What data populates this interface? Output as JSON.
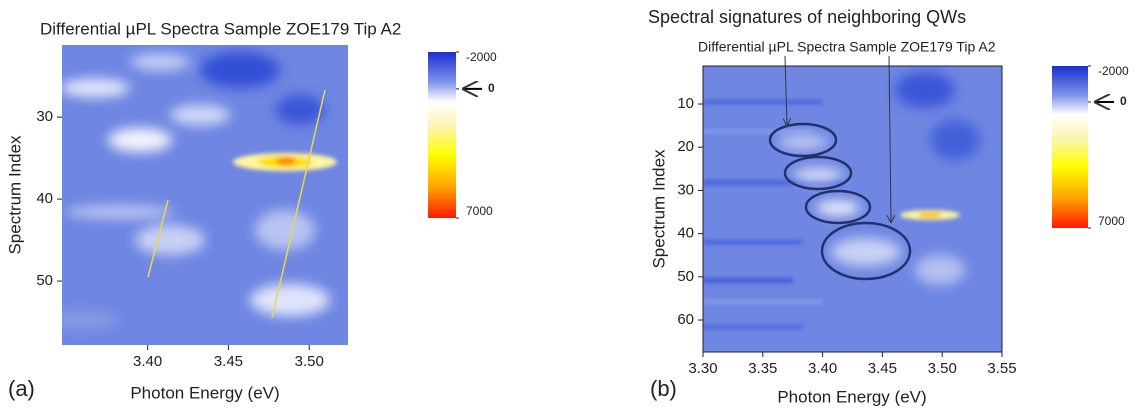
{
  "chart_data": [
    {
      "type": "heatmap",
      "panel_label": "(a)",
      "title": "Differential µPL Spectra Sample ZOE179 Tip A2",
      "x_label": "Photon Energy (eV)",
      "y_label": "Spectrum Index",
      "xlim": [
        3.347,
        3.524
      ],
      "xticks": [
        {
          "value": 3.4,
          "label": "3.40"
        },
        3.45,
        {
          "value": 3.5,
          "label": "3.50"
        }
      ],
      "ylim": [
        21.2,
        57.8
      ],
      "yticks": [
        30,
        40,
        50
      ],
      "y_inverted": true,
      "colorbar": {
        "lim": [
          -2000,
          7000
        ],
        "ticks": [
          -2000,
          0,
          7000
        ]
      }
    },
    {
      "type": "heatmap",
      "panel_label": "(b)",
      "title": "Spectral signatures of neighboring QWs",
      "subtitle": "Differential µPL Spectra Sample ZOE179 Tip A2",
      "x_label": "Photon Energy (eV)",
      "y_label": "Spectrum Index",
      "xlim": [
        3.3,
        3.55
      ],
      "xticks": [
        {
          "value": 3.3,
          "label": "3.30"
        },
        3.35,
        {
          "value": 3.4,
          "label": "3.40"
        },
        3.45,
        {
          "value": 3.5,
          "label": "3.50"
        },
        3.55
      ],
      "ylim": [
        1.2,
        67.4
      ],
      "yticks": [
        10,
        20,
        30,
        40,
        50,
        60
      ],
      "y_inverted": true,
      "colorbar": {
        "lim": [
          -2000,
          7000
        ],
        "ticks": [
          -2000,
          0,
          7000
        ]
      }
    }
  ]
}
